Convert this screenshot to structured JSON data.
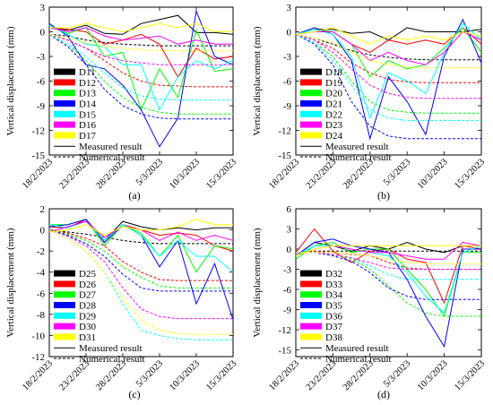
{
  "panel_labels": [
    "(a)",
    "(b)",
    "(c)",
    "(d)"
  ],
  "legend_common": {
    "measured": "Measured result",
    "numerical": "Numerical result"
  },
  "x_ticks": [
    "18/2/2023",
    "23/2/2023",
    "28/2/2023",
    "5/3/2023",
    "10/3/2023",
    "15/3/2023"
  ],
  "chart_data": [
    {
      "type": "line",
      "label": "(a)",
      "ylabel": "Vertical displacement (mm)",
      "ylim": [
        -15,
        3
      ],
      "yticks": [
        3,
        0,
        -3,
        -6,
        -9,
        -12,
        -15
      ],
      "x": [
        0,
        1,
        2,
        3,
        4,
        5,
        6,
        7,
        8,
        9,
        10
      ],
      "legend_position": "bottom-left",
      "series": [
        {
          "name": "D11",
          "color": "#000000",
          "measured": [
            0.5,
            0.2,
            0.8,
            -0.2,
            -0.3,
            1.0,
            1.5,
            2.0,
            -0.1,
            -0.1,
            -0.3
          ],
          "numerical": [
            -0.3,
            -0.5,
            -1.0,
            -1.3,
            -1.5,
            -1.6,
            -1.7,
            -1.7,
            -1.7,
            -1.7,
            -1.7
          ]
        },
        {
          "name": "D12",
          "color": "#ff0000",
          "measured": [
            0.5,
            0.3,
            0.0,
            -1.5,
            -1.0,
            -0.3,
            -1.5,
            -5.5,
            -2.0,
            -3.3,
            -3.0
          ],
          "numerical": [
            -0.3,
            -1.0,
            -2.0,
            -3.5,
            -5.0,
            -6.0,
            -6.5,
            -6.6,
            -6.7,
            -6.7,
            -6.7
          ]
        },
        {
          "name": "D13",
          "color": "#00ff00",
          "measured": [
            0.8,
            -0.2,
            0.5,
            -3.0,
            -2.5,
            -9.5,
            -4.5,
            -8.0,
            0.2,
            -4.8,
            -4.5
          ],
          "numerical": [
            -0.3,
            -1.5,
            -3.5,
            -6.0,
            -8.0,
            -9.2,
            -9.8,
            -10.0,
            -10.0,
            -10.0,
            -10.0
          ]
        },
        {
          "name": "D14",
          "color": "#0000ff",
          "measured": [
            1.0,
            -0.5,
            -4.0,
            -4.5,
            -6.5,
            -9.5,
            -14.0,
            -10.5,
            2.5,
            -3.0,
            -4.0
          ],
          "numerical": [
            -0.3,
            -1.8,
            -4.0,
            -7.0,
            -9.0,
            -10.0,
            -10.5,
            -10.6,
            -10.6,
            -10.6,
            -10.6
          ]
        },
        {
          "name": "D15",
          "color": "#00ffff",
          "measured": [
            0.8,
            -0.3,
            -1.5,
            -1.8,
            -4.0,
            -4.0,
            -9.5,
            -5.5,
            -3.5,
            -4.5,
            -3.5
          ],
          "numerical": [
            -0.3,
            -1.5,
            -3.0,
            -5.0,
            -6.8,
            -7.8,
            -8.2,
            -8.3,
            -8.3,
            -8.3,
            -8.3
          ]
        },
        {
          "name": "D16",
          "color": "#ff00ff",
          "measured": [
            0.5,
            0.0,
            0.5,
            -0.5,
            -1.0,
            -0.8,
            -0.5,
            -1.5,
            -1.0,
            -1.5,
            -1.5
          ],
          "numerical": [
            -0.3,
            -1.0,
            -2.0,
            -3.0,
            -3.5,
            -3.8,
            -4.0,
            -4.0,
            -4.0,
            -4.0,
            -4.0
          ]
        },
        {
          "name": "D17",
          "color": "#ffff00",
          "measured": [
            0.5,
            0.5,
            1.0,
            0.5,
            0.0,
            0.5,
            1.0,
            0.5,
            1.0,
            0.0,
            0.0
          ],
          "numerical": [
            -0.3,
            -0.8,
            -1.3,
            -1.8,
            -2.0,
            -2.2,
            -2.3,
            -2.3,
            -2.3,
            -2.3,
            -2.3
          ]
        }
      ]
    },
    {
      "type": "line",
      "label": "(b)",
      "ylabel": "Vertical displacement (mm)",
      "ylim": [
        -15,
        3
      ],
      "yticks": [
        3,
        0,
        -3,
        -6,
        -9,
        -12,
        -15
      ],
      "x": [
        0,
        1,
        2,
        3,
        4,
        5,
        6,
        7,
        8,
        9,
        10
      ],
      "legend_position": "bottom-left",
      "series": [
        {
          "name": "D18",
          "color": "#000000",
          "measured": [
            -0.3,
            0.3,
            0.3,
            -0.2,
            0.0,
            -1.0,
            0.5,
            0.0,
            0.0,
            0.0,
            0.3
          ],
          "numerical": [
            -0.3,
            -0.8,
            -1.5,
            -2.3,
            -2.8,
            -3.1,
            -3.3,
            -3.4,
            -3.4,
            -3.4,
            -3.4
          ]
        },
        {
          "name": "D19",
          "color": "#ff0000",
          "measured": [
            -0.3,
            0.3,
            0.0,
            -1.5,
            -2.5,
            -1.0,
            -1.5,
            -1.0,
            -1.5,
            0.5,
            -1.5
          ],
          "numerical": [
            -0.3,
            -1.0,
            -2.0,
            -3.8,
            -5.0,
            -5.8,
            -6.1,
            -6.2,
            -6.2,
            -6.2,
            -6.2
          ]
        },
        {
          "name": "D20",
          "color": "#00ff00",
          "measured": [
            -0.3,
            0.3,
            0.0,
            -1.5,
            -5.5,
            -3.5,
            -4.5,
            -4.0,
            -2.0,
            0.5,
            -2.5
          ],
          "numerical": [
            -0.3,
            -1.3,
            -3.0,
            -6.0,
            -8.5,
            -9.5,
            -9.8,
            -9.9,
            -9.9,
            -9.9,
            -9.9
          ]
        },
        {
          "name": "D21",
          "color": "#0000ff",
          "measured": [
            -0.3,
            0.5,
            -0.3,
            -3.5,
            -13.0,
            -5.5,
            -8.5,
            -12.5,
            -3.0,
            1.5,
            -3.8
          ],
          "numerical": [
            -0.3,
            -1.5,
            -4.0,
            -8.5,
            -11.5,
            -12.7,
            -13.0,
            -13.0,
            -13.0,
            -13.0,
            -13.0
          ]
        },
        {
          "name": "D22",
          "color": "#00ffff",
          "measured": [
            -0.3,
            0.3,
            -0.3,
            -3.0,
            -10.5,
            -5.0,
            -6.0,
            -7.5,
            -2.5,
            1.0,
            -1.0
          ],
          "numerical": [
            -0.3,
            -1.3,
            -3.5,
            -6.5,
            -9.5,
            -10.5,
            -10.8,
            -10.8,
            -10.8,
            -10.8,
            -10.8
          ]
        },
        {
          "name": "D23",
          "color": "#ff00ff",
          "measured": [
            -0.3,
            0.0,
            0.0,
            -1.5,
            -3.5,
            -2.5,
            -3.5,
            -4.0,
            -2.5,
            0.0,
            -1.0
          ],
          "numerical": [
            -0.3,
            -1.0,
            -2.5,
            -4.5,
            -6.5,
            -7.5,
            -8.0,
            -8.1,
            -8.1,
            -8.1,
            -8.1
          ]
        },
        {
          "name": "D24",
          "color": "#ffff00",
          "measured": [
            -0.3,
            0.0,
            0.5,
            -0.5,
            -1.5,
            -0.5,
            -1.0,
            -0.5,
            -1.0,
            0.0,
            -0.5
          ],
          "numerical": [
            -0.3,
            -0.8,
            -1.3,
            -2.5,
            -3.5,
            -4.0,
            -4.3,
            -4.4,
            -4.4,
            -4.4,
            -4.4
          ]
        }
      ]
    },
    {
      "type": "line",
      "label": "(c)",
      "ylabel": "Vertical displacement (mm)",
      "ylim": [
        -12,
        2
      ],
      "yticks": [
        2,
        0,
        -2,
        -4,
        -6,
        -8,
        -10,
        -12
      ],
      "x": [
        0,
        1,
        2,
        3,
        4,
        5,
        6,
        7,
        8,
        9,
        10
      ],
      "legend_position": "bottom-left",
      "series": [
        {
          "name": "D25",
          "color": "#000000",
          "measured": [
            0.3,
            0.2,
            1.0,
            -1.0,
            0.8,
            0.3,
            0.0,
            0.2,
            0.0,
            0.2,
            0.2
          ],
          "numerical": [
            0.0,
            -0.2,
            -0.4,
            -0.7,
            -1.0,
            -1.2,
            -1.3,
            -1.3,
            -1.3,
            -1.3,
            -1.3
          ]
        },
        {
          "name": "D26",
          "color": "#ff0000",
          "measured": [
            0.3,
            0.2,
            1.0,
            -1.2,
            0.5,
            0.0,
            -0.5,
            -0.3,
            -0.5,
            -1.5,
            -2.0
          ],
          "numerical": [
            0.0,
            -0.3,
            -0.8,
            -1.5,
            -3.0,
            -4.0,
            -4.7,
            -4.8,
            -4.8,
            -4.8,
            -4.8
          ]
        },
        {
          "name": "D27",
          "color": "#00ff00",
          "measured": [
            0.5,
            0.5,
            1.0,
            -1.5,
            0.5,
            -0.3,
            -2.5,
            -0.5,
            -4.0,
            -1.5,
            -1.8
          ],
          "numerical": [
            0.0,
            -0.4,
            -1.0,
            -2.0,
            -3.5,
            -4.5,
            -5.3,
            -5.5,
            -5.5,
            -5.5,
            -5.5
          ]
        },
        {
          "name": "D28",
          "color": "#0000ff",
          "measured": [
            0.3,
            0.5,
            1.0,
            -1.2,
            0.5,
            -0.5,
            -3.5,
            -1.0,
            -7.0,
            -3.2,
            -8.5
          ],
          "numerical": [
            0.0,
            -0.5,
            -1.3,
            -2.5,
            -4.2,
            -5.5,
            -5.8,
            -5.8,
            -5.8,
            -5.8,
            -5.8
          ]
        },
        {
          "name": "D29",
          "color": "#00ffff",
          "measured": [
            0.5,
            0.2,
            0.8,
            -1.0,
            0.5,
            -0.5,
            -2.5,
            -1.0,
            -2.5,
            -2.5,
            -4.0
          ],
          "numerical": [
            0.0,
            -0.8,
            -2.0,
            -4.0,
            -7.0,
            -9.5,
            -10.0,
            -10.3,
            -10.4,
            -10.4,
            -10.4
          ]
        },
        {
          "name": "D30",
          "color": "#ff00ff",
          "measured": [
            -0.2,
            0.3,
            0.8,
            -0.7,
            0.3,
            0.0,
            -1.0,
            -0.2,
            -1.0,
            -0.5,
            -1.0
          ],
          "numerical": [
            0.0,
            -0.6,
            -1.5,
            -3.0,
            -5.5,
            -7.5,
            -8.2,
            -8.4,
            -8.4,
            -8.4,
            -8.4
          ]
        },
        {
          "name": "D31",
          "color": "#ffff00",
          "measured": [
            -0.2,
            0.0,
            0.5,
            -0.5,
            0.3,
            0.0,
            0.0,
            0.3,
            1.0,
            0.5,
            0.5
          ],
          "numerical": [
            0.0,
            -0.8,
            -2.0,
            -4.0,
            -6.5,
            -8.5,
            -9.5,
            -9.8,
            -9.9,
            -9.9,
            -9.9
          ]
        }
      ]
    },
    {
      "type": "line",
      "label": "(d)",
      "ylabel": "Vertical displacement (mm)",
      "ylim": [
        -16,
        6
      ],
      "yticks": [
        6,
        3,
        0,
        -3,
        -6,
        -9,
        -12,
        -15
      ],
      "x": [
        0,
        1,
        2,
        3,
        4,
        5,
        6,
        7,
        8,
        9,
        10
      ],
      "legend_position": "bottom-left",
      "series": [
        {
          "name": "D32",
          "color": "#000000",
          "measured": [
            -1.0,
            1.0,
            0.5,
            -0.3,
            0.5,
            0.0,
            1.0,
            0.0,
            -0.5,
            0.5,
            0.5
          ],
          "numerical": [
            -0.5,
            -0.3,
            -0.3,
            -0.3,
            -0.3,
            -0.3,
            -0.3,
            -0.3,
            -0.3,
            -0.3,
            -0.3
          ]
        },
        {
          "name": "D33",
          "color": "#ff0000",
          "measured": [
            -0.5,
            3.0,
            -0.3,
            -2.0,
            -0.3,
            0.0,
            -1.5,
            -2.0,
            -8.0,
            0.5,
            0.0
          ],
          "numerical": [
            -0.5,
            -0.3,
            -0.5,
            -0.8,
            -1.0,
            -2.0,
            -2.8,
            -3.0,
            -3.0,
            -3.0,
            -3.0
          ]
        },
        {
          "name": "D34",
          "color": "#00ff00",
          "measured": [
            -1.5,
            0.5,
            1.0,
            -0.5,
            0.0,
            0.0,
            -3.0,
            -6.0,
            -10.0,
            -0.5,
            -0.5
          ],
          "numerical": [
            -0.5,
            -0.5,
            -0.8,
            -1.5,
            -3.0,
            -5.5,
            -8.0,
            -9.5,
            -10.0,
            -10.0,
            -10.0
          ]
        },
        {
          "name": "D35",
          "color": "#0000ff",
          "measured": [
            -1.0,
            1.0,
            1.5,
            0.5,
            0.0,
            -0.5,
            -4.5,
            -10.0,
            -14.5,
            0.0,
            0.0
          ],
          "numerical": [
            -0.5,
            -0.5,
            -1.0,
            -1.8,
            -3.5,
            -5.8,
            -7.0,
            -7.5,
            -7.5,
            -7.5,
            -7.5
          ]
        },
        {
          "name": "D36",
          "color": "#00ffff",
          "measured": [
            -1.0,
            0.5,
            0.5,
            0.0,
            -0.5,
            -1.0,
            -3.5,
            -7.0,
            -9.5,
            -0.5,
            0.5
          ],
          "numerical": [
            -0.5,
            -0.5,
            -0.8,
            -1.3,
            -2.5,
            -3.8,
            -4.5,
            -4.5,
            -4.5,
            -4.5,
            -4.5
          ]
        },
        {
          "name": "D37",
          "color": "#ff00ff",
          "measured": [
            -1.0,
            0.0,
            0.5,
            0.0,
            -0.5,
            -0.5,
            -1.0,
            -1.5,
            -1.5,
            1.0,
            0.5
          ],
          "numerical": [
            -0.5,
            -0.5,
            -0.8,
            -1.3,
            -2.0,
            -2.8,
            -3.0,
            -3.0,
            -3.0,
            -3.0,
            -3.0
          ]
        },
        {
          "name": "D38",
          "color": "#ffff00",
          "measured": [
            -1.0,
            0.0,
            0.5,
            0.5,
            0.5,
            0.5,
            0.5,
            0.5,
            0.5,
            0.5,
            0.5
          ],
          "numerical": [
            -0.5,
            -0.5,
            -0.5,
            -0.7,
            -1.0,
            -1.5,
            -2.0,
            -2.2,
            -2.2,
            -2.2,
            -2.2
          ]
        }
      ]
    }
  ]
}
